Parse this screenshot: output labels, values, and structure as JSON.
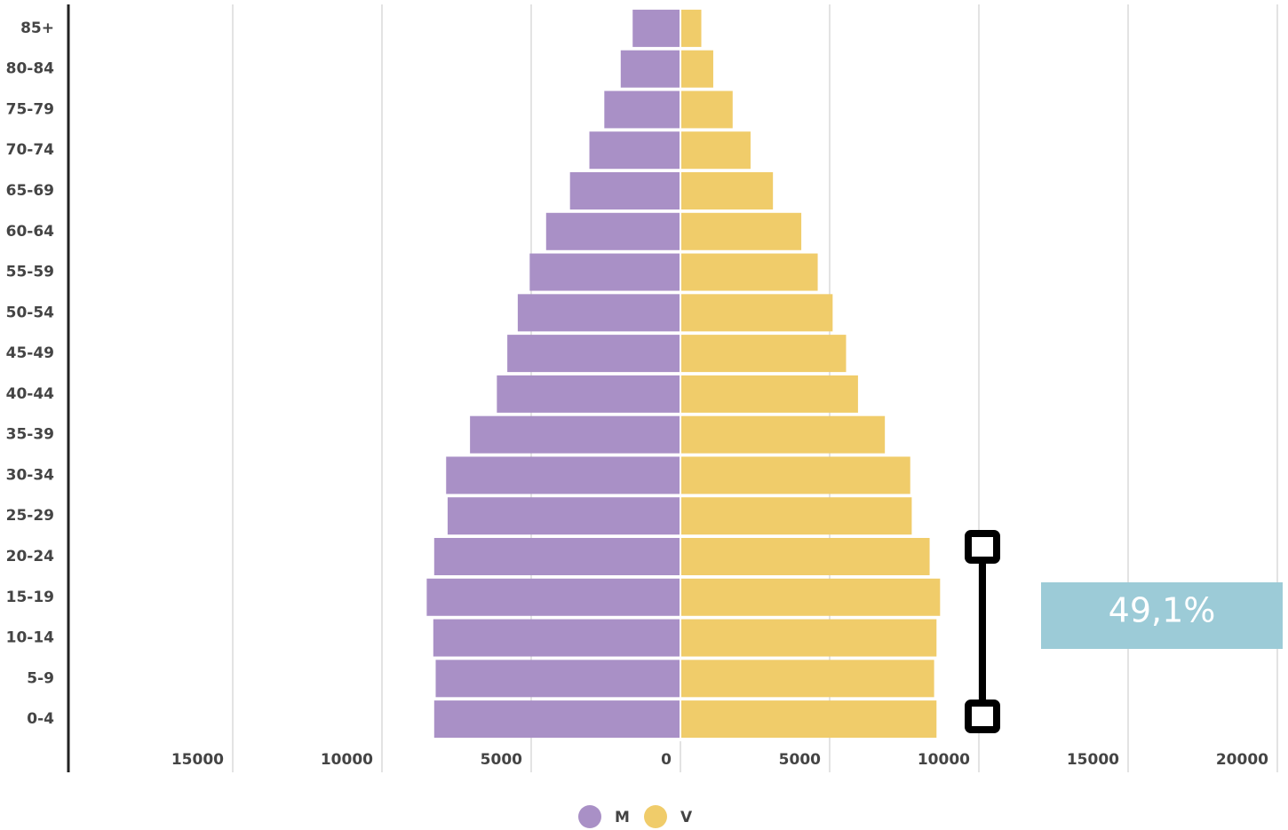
{
  "chart_data": {
    "type": "pyramid",
    "categories": [
      "85+",
      "80-84",
      "75-79",
      "70-74",
      "65-69",
      "60-64",
      "55-59",
      "50-54",
      "45-49",
      "40-44",
      "35-39",
      "30-34",
      "25-29",
      "20-24",
      "15-19",
      "10-14",
      "5-9",
      "0-4"
    ],
    "series": [
      {
        "name": "M",
        "color": "#a990c6",
        "values": [
          -1600,
          -2000,
          -2550,
          -3050,
          -3700,
          -4500,
          -5050,
          -5450,
          -5800,
          -6150,
          -7050,
          -7850,
          -7800,
          -8250,
          -8500,
          -8280,
          -8200,
          -8250
        ]
      },
      {
        "name": "V",
        "color": "#f0cc6a",
        "values": [
          700,
          1100,
          1750,
          2350,
          3100,
          4050,
          4600,
          5100,
          5550,
          5950,
          6850,
          7700,
          7750,
          8350,
          8700,
          8580,
          8500,
          8580
        ]
      }
    ],
    "xlim": [
      -20500,
      20100
    ],
    "xticks": [
      {
        "value": -15000,
        "label": "15000"
      },
      {
        "value": -10000,
        "label": "10000"
      },
      {
        "value": -5000,
        "label": "5000"
      },
      0,
      5000,
      10000,
      15000,
      20000
    ],
    "grid": true,
    "annotation": "49,1%"
  }
}
